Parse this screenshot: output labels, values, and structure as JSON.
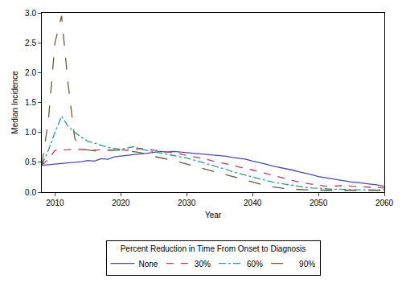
{
  "chart_data": {
    "type": "line",
    "x_label": "Year",
    "y_label": "Median Incidence",
    "legend_title": "Percent Reduction in Time From Onset to Diagnosis",
    "legend": "bottom",
    "grid": false,
    "xlim": [
      2008,
      2060
    ],
    "xticks": [
      2010,
      2020,
      2030,
      2040,
      2050,
      2060
    ],
    "ylim": [
      0,
      3
    ],
    "yticks": [
      {
        "value": 0,
        "label": "0.0"
      },
      0.5,
      {
        "value": 1,
        "label": "1.0"
      },
      1.5,
      {
        "value": 2,
        "label": "2.0"
      },
      2.5,
      {
        "value": 3,
        "label": "3.0"
      }
    ],
    "x": [
      2008,
      2009,
      2010,
      2011,
      2012,
      2013,
      2014,
      2015,
      2016,
      2017,
      2018,
      2019,
      2020,
      2021,
      2022,
      2023,
      2024,
      2025,
      2026,
      2027,
      2028,
      2029,
      2030,
      2031,
      2032,
      2033,
      2034,
      2035,
      2036,
      2037,
      2038,
      2039,
      2040,
      2041,
      2042,
      2043,
      2044,
      2045,
      2046,
      2047,
      2048,
      2049,
      2050,
      2051,
      2052,
      2053,
      2054,
      2055,
      2056,
      2057,
      2058,
      2059,
      2060
    ],
    "series": [
      {
        "name": "None",
        "color": "#4a4aa8",
        "line_style": "solid",
        "values": [
          0.45,
          0.46,
          0.47,
          0.48,
          0.49,
          0.5,
          0.51,
          0.53,
          0.52,
          0.56,
          0.55,
          0.59,
          0.6,
          0.61,
          0.62,
          0.64,
          0.65,
          0.66,
          0.68,
          0.67,
          0.68,
          0.67,
          0.66,
          0.65,
          0.64,
          0.63,
          0.62,
          0.61,
          0.6,
          0.58,
          0.57,
          0.55,
          0.52,
          0.5,
          0.47,
          0.44,
          0.42,
          0.39,
          0.37,
          0.34,
          0.32,
          0.29,
          0.26,
          0.24,
          0.22,
          0.2,
          0.18,
          0.17,
          0.16,
          0.15,
          0.13,
          0.12,
          0.1
        ]
      },
      {
        "name": "30%",
        "color": "#c8345a",
        "line_style": "dash",
        "values": [
          0.45,
          0.55,
          0.7,
          0.71,
          0.71,
          0.72,
          0.71,
          0.71,
          0.7,
          0.71,
          0.7,
          0.7,
          0.71,
          0.7,
          0.72,
          0.73,
          0.72,
          0.7,
          0.69,
          0.67,
          0.66,
          0.64,
          0.62,
          0.6,
          0.58,
          0.55,
          0.52,
          0.5,
          0.48,
          0.45,
          0.42,
          0.4,
          0.37,
          0.34,
          0.31,
          0.28,
          0.25,
          0.22,
          0.2,
          0.17,
          0.15,
          0.13,
          0.12,
          0.1,
          0.1,
          0.11,
          0.11,
          0.1,
          0.09,
          0.09,
          0.08,
          0.08,
          0.07
        ]
      },
      {
        "name": "60%",
        "color": "#2e9a8a",
        "line_style": "dashdot",
        "values": [
          0.45,
          0.7,
          1.0,
          1.27,
          1.1,
          1.0,
          0.92,
          0.85,
          0.82,
          0.78,
          0.75,
          0.73,
          0.72,
          0.74,
          0.76,
          0.72,
          0.7,
          0.68,
          0.66,
          0.64,
          0.62,
          0.6,
          0.57,
          0.54,
          0.51,
          0.48,
          0.45,
          0.41,
          0.38,
          0.34,
          0.31,
          0.28,
          0.25,
          0.22,
          0.2,
          0.17,
          0.15,
          0.13,
          0.11,
          0.09,
          0.08,
          0.07,
          0.06,
          0.05,
          0.05,
          0.05,
          0.04,
          0.04,
          0.04,
          0.04,
          0.04,
          0.04,
          0.04
        ]
      },
      {
        "name": "90%",
        "color": "#6b5a3a",
        "line_style": "longdash",
        "values": [
          0.45,
          1.2,
          2.5,
          2.95,
          1.8,
          0.9,
          0.72,
          0.7,
          0.69,
          0.7,
          0.7,
          0.71,
          0.7,
          0.69,
          0.68,
          0.66,
          0.62,
          0.6,
          0.58,
          0.56,
          0.53,
          0.5,
          0.47,
          0.44,
          0.41,
          0.38,
          0.35,
          0.31,
          0.28,
          0.25,
          0.22,
          0.19,
          0.16,
          0.13,
          0.11,
          0.09,
          0.07,
          0.06,
          0.05,
          0.04,
          0.04,
          0.04,
          0.03,
          0.03,
          0.03,
          0.03,
          0.03,
          0.03,
          0.03,
          0.03,
          0.03,
          0.03,
          0.03
        ]
      }
    ]
  }
}
